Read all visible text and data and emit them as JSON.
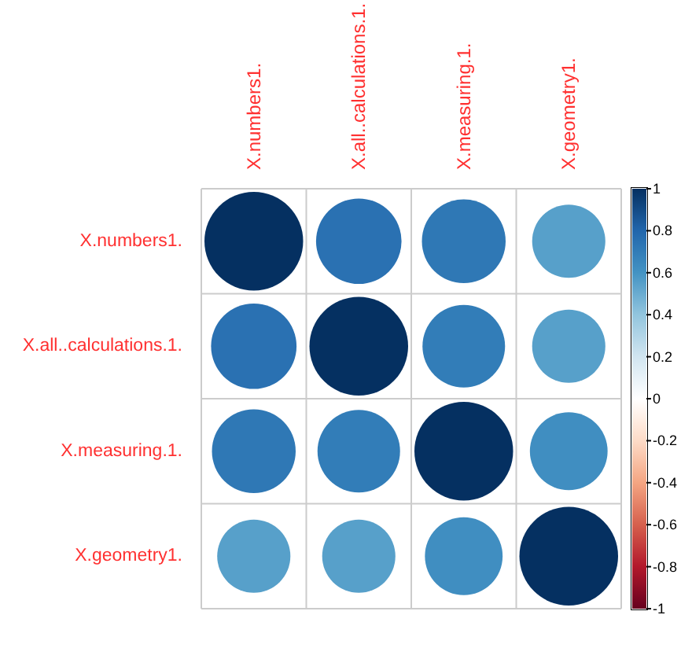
{
  "chart_data": {
    "type": "heatmap",
    "categories": [
      "X.numbers1.",
      "X.all..calculations.1.",
      "X.measuring.1.",
      "X.geometry1."
    ],
    "y_categories": [
      "X.numbers1.",
      "X.all..calculations.1.",
      "X.measuring.1.",
      "X.geometry1."
    ],
    "cells": [
      [
        1,
        0.75,
        0.72,
        0.55
      ],
      [
        0.75,
        1,
        0.7,
        0.55
      ],
      [
        0.72,
        0.7,
        1,
        0.62
      ],
      [
        0.55,
        0.55,
        0.62,
        1
      ]
    ],
    "clim": [
      -1,
      1
    ],
    "cticks": [
      -1,
      -0.8,
      -0.6,
      -0.4,
      -0.2,
      0,
      0.2,
      0.4,
      0.6,
      0.8,
      1
    ],
    "grid": true
  }
}
